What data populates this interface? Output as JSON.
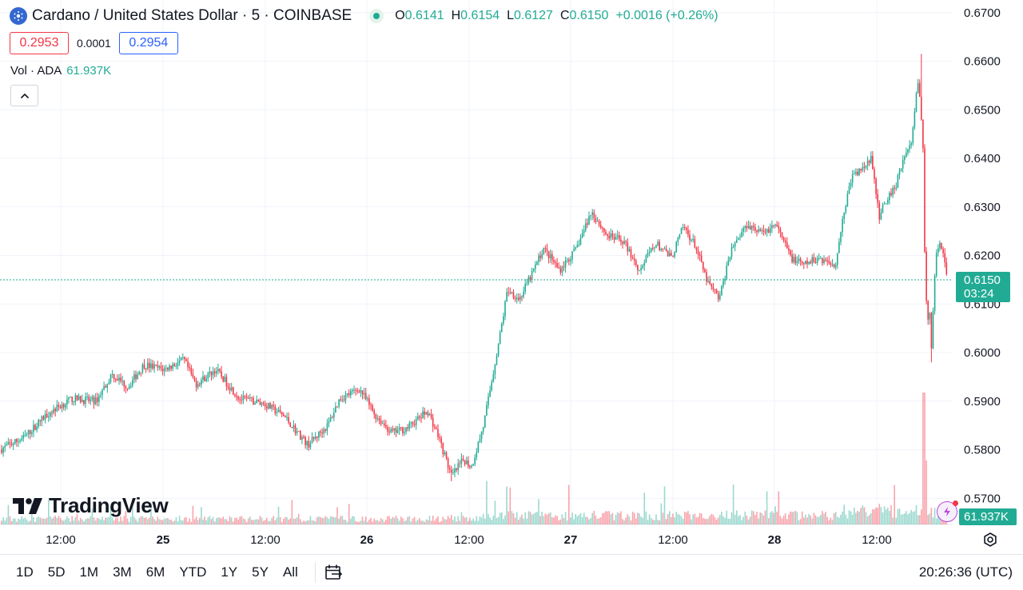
{
  "header": {
    "title": "Cardano / United States Dollar · 5 · COINBASE",
    "ohlc": {
      "o_label": "O",
      "o_value": "0.6141",
      "h_label": "H",
      "h_value": "0.6154",
      "l_label": "L",
      "l_value": "0.6127",
      "c_label": "C",
      "c_value": "0.6150",
      "change": "+0.0016 (+0.26%)"
    }
  },
  "trade": {
    "sell": "0.2953",
    "spread": "0.0001",
    "buy": "0.2954"
  },
  "volume_legend": {
    "label": "Vol · ADA",
    "value": "61.937K"
  },
  "price_axis": [
    "0.6700",
    "0.6600",
    "0.6500",
    "0.6400",
    "0.6300",
    "0.6200",
    "0.6100",
    "0.6000",
    "0.5900",
    "0.5800",
    "0.5700"
  ],
  "time_axis": [
    "12:00",
    "25",
    "12:00",
    "26",
    "12:00",
    "27",
    "12:00",
    "28",
    "12:00"
  ],
  "last_price": {
    "price": "0.6150",
    "countdown": "03:24",
    "volume": "61.937K"
  },
  "watermark": "TradingView",
  "toolbar": {
    "timeframes": [
      "1D",
      "5D",
      "1M",
      "3M",
      "6M",
      "YTD",
      "1Y",
      "5Y",
      "All"
    ],
    "clock": "20:26:36 (UTC)"
  },
  "icons": {
    "symbol": "cardano-icon",
    "calendar": "calendar-range-icon",
    "settings": "settings-icon",
    "collapse": "chevron-up-icon"
  },
  "colors": {
    "up": "#22ab94",
    "down": "#f23645",
    "accent": "#2962ff"
  },
  "chart_data": {
    "type": "line",
    "description_source": "candlestick price path, ADA/USD 5-minute",
    "x": [
      "24 08:00",
      "24 12:00",
      "24 18:00",
      "25 00:00",
      "25 06:00",
      "25 12:00",
      "25 18:00",
      "26 00:00",
      "26 06:00",
      "26 09:00",
      "26 12:00",
      "26 15:00",
      "26 18:00",
      "27 00:00",
      "27 06:00",
      "27 12:00",
      "27 15:00",
      "27 18:00",
      "28 00:00",
      "28 06:00",
      "28 09:00",
      "28 12:00",
      "28 14:00",
      "28 16:00",
      "28 17:00",
      "28 18:00",
      "28 19:00",
      "28 20:00",
      "28 20:26"
    ],
    "close": [
      0.58,
      0.586,
      0.589,
      0.5965,
      0.595,
      0.588,
      0.586,
      0.581,
      0.59,
      0.586,
      0.585,
      0.575,
      0.583,
      0.61,
      0.619,
      0.618,
      0.628,
      0.622,
      0.621,
      0.613,
      0.624,
      0.627,
      0.619,
      0.62,
      0.639,
      0.634,
      0.644,
      0.658,
      0.615
    ],
    "high": 0.6615,
    "low": 0.5735,
    "ylim": [
      0.5655,
      0.6715
    ],
    "volume_max": "61.937K"
  }
}
